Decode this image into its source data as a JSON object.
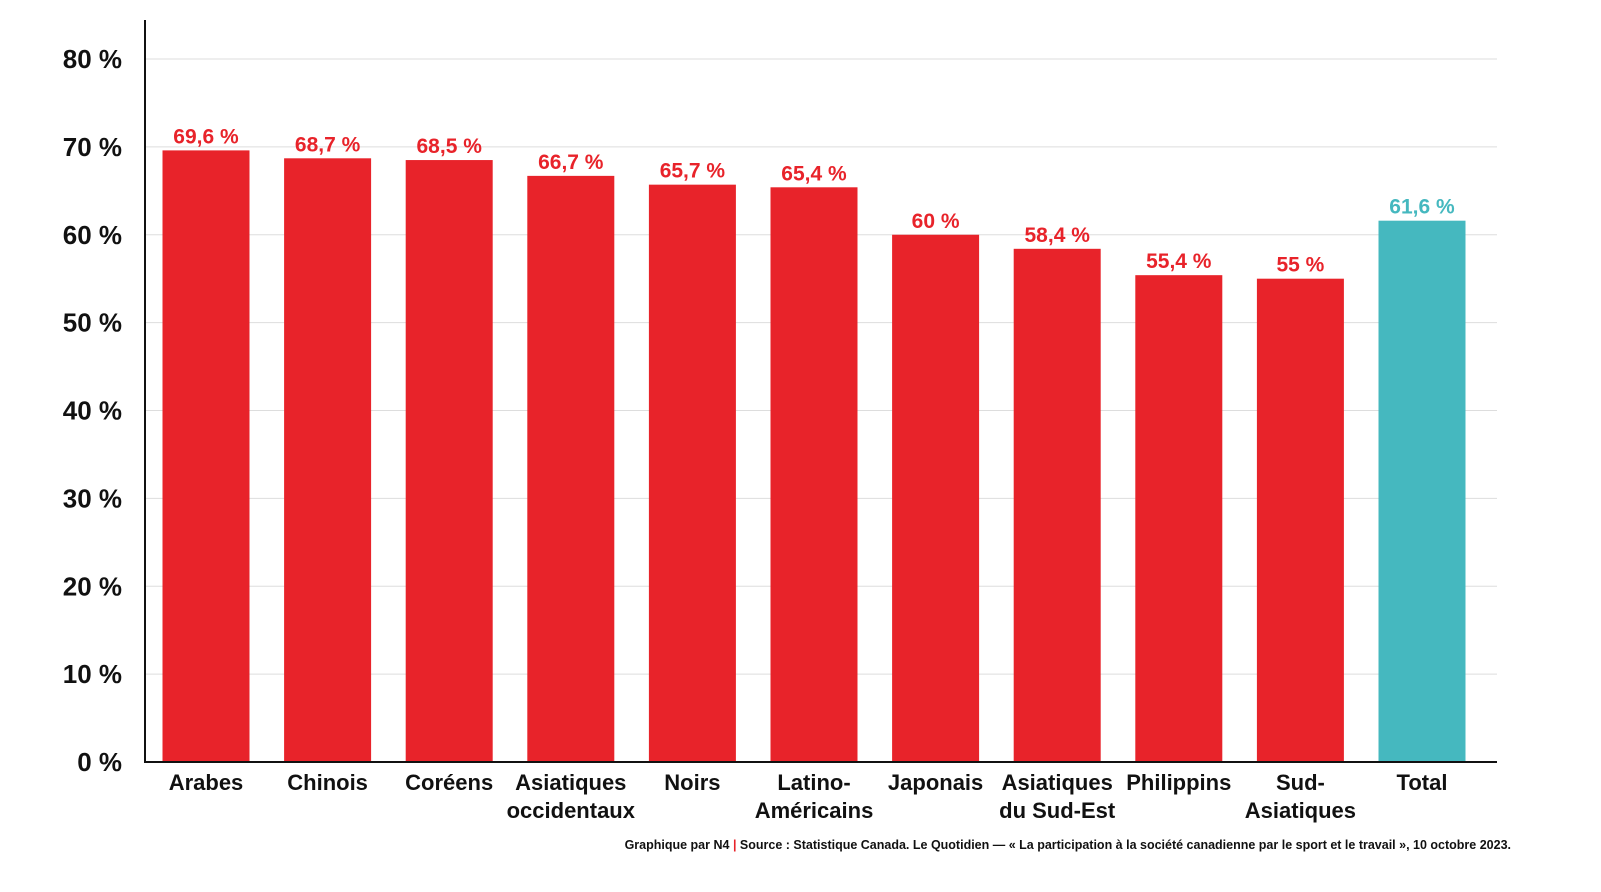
{
  "chart_data": {
    "type": "bar",
    "categories": [
      "Arabes",
      "Chinois",
      "Coréens",
      "Asiatiques occidentaux",
      "Noirs",
      "Latino-Américains",
      "Japonais",
      "Asiatiques du Sud-Est",
      "Philippins",
      "Sud-Asiatiques",
      "Total"
    ],
    "category_lines": [
      [
        "Arabes"
      ],
      [
        "Chinois"
      ],
      [
        "Coréens"
      ],
      [
        "Asiatiques",
        "occidentaux"
      ],
      [
        "Noirs"
      ],
      [
        "Latino-",
        "Américains"
      ],
      [
        "Japonais"
      ],
      [
        "Asiatiques",
        "du Sud-Est"
      ],
      [
        "Philippins"
      ],
      [
        "Sud-",
        "Asiatiques"
      ],
      [
        "Total"
      ]
    ],
    "values": [
      69.6,
      68.7,
      68.5,
      66.7,
      65.7,
      65.4,
      60,
      58.4,
      55.4,
      55,
      61.6
    ],
    "value_labels": [
      "69,6 %",
      "68,7 %",
      "68,5 %",
      "66,7 %",
      "65,7 %",
      "65,4 %",
      "60 %",
      "58,4 %",
      "55,4 %",
      "55 %",
      "61,6 %"
    ],
    "highlight_index": 10,
    "ylim": [
      0,
      80
    ],
    "yticks": [
      0,
      10,
      20,
      30,
      40,
      50,
      60,
      70,
      80
    ],
    "ytick_labels": [
      "0 %",
      "10 %",
      "20 %",
      "30 %",
      "40 %",
      "50 %",
      "60 %",
      "70 %",
      "80 %"
    ],
    "grid": true,
    "colors": {
      "bar": "#e8232a",
      "highlight": "#45b8bf",
      "grid": "#dddddd",
      "axis": "#111111"
    }
  },
  "footer": {
    "credit": "Graphique par N4",
    "separator": "|",
    "source": "Source : Statistique Canada. Le Quotidien — « La participation à la société canadienne par le sport et le travail », 10 octobre 2023."
  }
}
